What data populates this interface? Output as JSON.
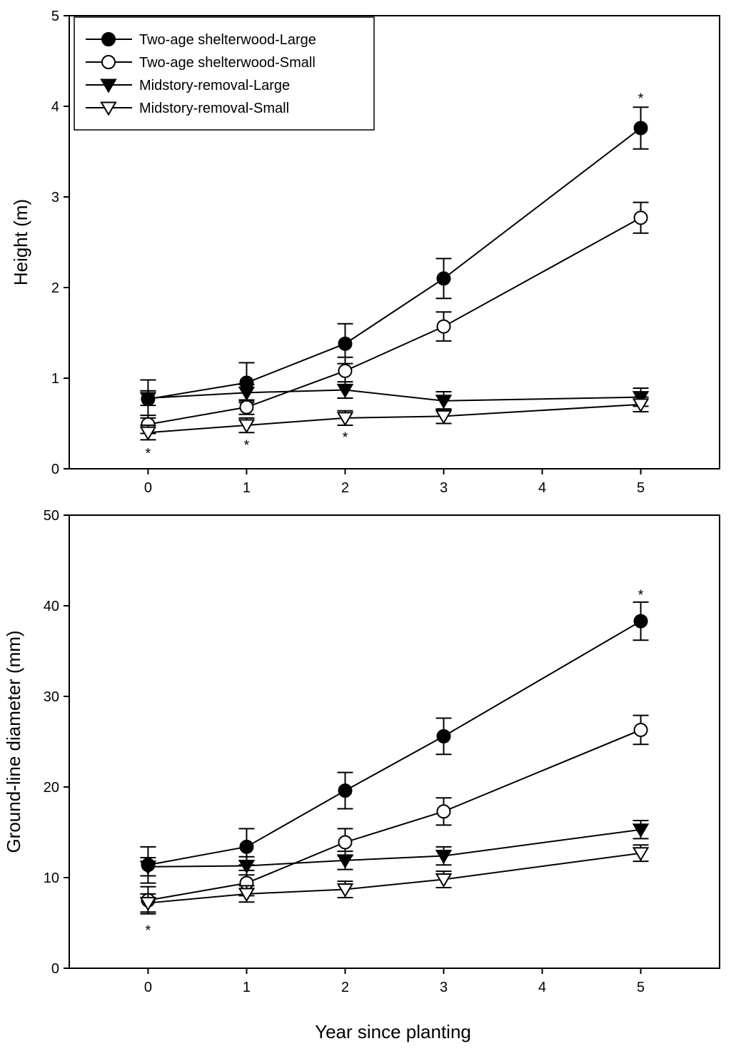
{
  "chart_data": [
    {
      "type": "line",
      "xlabel": "",
      "ylabel": "Height (m)",
      "xlim": [
        -0.8,
        5.8
      ],
      "ylim": [
        0,
        5
      ],
      "xticks": [
        0,
        1,
        2,
        3,
        4,
        5
      ],
      "yticks": [
        0,
        1,
        2,
        3,
        4,
        5
      ],
      "grid": false,
      "legend_placement": "top-left",
      "series": [
        {
          "name": "Two-age shelterwood-Large",
          "marker": "filled-circle",
          "x": [
            0,
            1,
            2,
            3,
            5
          ],
          "y": [
            0.77,
            0.95,
            1.38,
            2.1,
            3.76
          ],
          "error": [
            0.21,
            0.22,
            0.22,
            0.22,
            0.23
          ]
        },
        {
          "name": "Two-age shelterwood-Small",
          "marker": "open-circle",
          "x": [
            0,
            1,
            2,
            3,
            5
          ],
          "y": [
            0.49,
            0.68,
            1.08,
            1.57,
            2.77
          ],
          "error": [
            0.1,
            0.08,
            0.15,
            0.16,
            0.17
          ]
        },
        {
          "name": "Midstory-removal-Large",
          "marker": "filled-triangle-down",
          "x": [
            0,
            1,
            2,
            3,
            5
          ],
          "y": [
            0.78,
            0.84,
            0.87,
            0.75,
            0.79
          ],
          "error": [
            0.08,
            0.09,
            0.09,
            0.1,
            0.1
          ]
        },
        {
          "name": "Midstory-removal-Small",
          "marker": "open-triangle-down",
          "x": [
            0,
            1,
            2,
            3,
            5
          ],
          "y": [
            0.4,
            0.48,
            0.56,
            0.58,
            0.71
          ],
          "error": [
            0.08,
            0.08,
            0.08,
            0.08,
            0.08
          ]
        }
      ],
      "annotations": [
        {
          "text": "*",
          "x": 5,
          "y": 4.1
        },
        {
          "text": "*",
          "x": 0,
          "y": 0.18
        },
        {
          "text": "*",
          "x": 1,
          "y": 0.27
        },
        {
          "text": "*",
          "x": 2,
          "y": 0.36
        }
      ]
    },
    {
      "type": "line",
      "xlabel": "Year since planting",
      "ylabel": "Ground-line diameter (mm)",
      "xlim": [
        -0.8,
        5.8
      ],
      "ylim": [
        0,
        50
      ],
      "xticks": [
        0,
        1,
        2,
        3,
        4,
        5
      ],
      "yticks": [
        0,
        10,
        20,
        30,
        40,
        50
      ],
      "grid": false,
      "series": [
        {
          "name": "Two-age shelterwood-Large",
          "marker": "filled-circle",
          "x": [
            0,
            1,
            2,
            3,
            5
          ],
          "y": [
            11.4,
            13.4,
            19.6,
            25.6,
            38.3
          ],
          "error": [
            2.0,
            2.0,
            2.0,
            2.0,
            2.1
          ]
        },
        {
          "name": "Two-age shelterwood-Small",
          "marker": "open-circle",
          "x": [
            0,
            1,
            2,
            3,
            5
          ],
          "y": [
            7.5,
            9.4,
            13.9,
            17.3,
            26.3
          ],
          "error": [
            1.5,
            1.4,
            1.5,
            1.5,
            1.6
          ]
        },
        {
          "name": "Midstory-removal-Large",
          "marker": "filled-triangle-down",
          "x": [
            0,
            1,
            2,
            3,
            5
          ],
          "y": [
            11.2,
            11.3,
            11.9,
            12.4,
            15.3
          ],
          "error": [
            1.0,
            1.0,
            1.0,
            1.0,
            1.0
          ]
        },
        {
          "name": "Midstory-removal-Small",
          "marker": "open-triangle-down",
          "x": [
            0,
            1,
            2,
            3,
            5
          ],
          "y": [
            7.2,
            8.2,
            8.7,
            9.8,
            12.7
          ],
          "error": [
            1.0,
            0.9,
            0.9,
            0.9,
            0.9
          ]
        }
      ],
      "annotations": [
        {
          "text": "*",
          "x": 5,
          "y": 41.3
        },
        {
          "text": "*",
          "x": 0,
          "y": 4.3
        }
      ]
    }
  ]
}
